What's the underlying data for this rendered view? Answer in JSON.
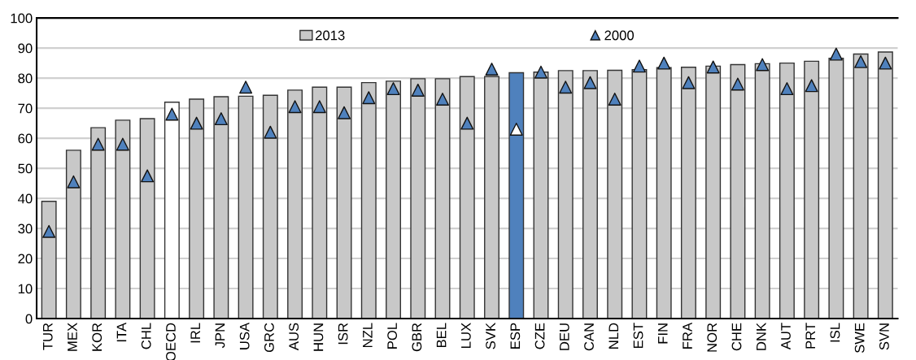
{
  "chart_data": {
    "type": "bar",
    "categories": [
      "TUR",
      "MEX",
      "KOR",
      "ITA",
      "CHL",
      "OECD",
      "IRL",
      "JPN",
      "USA",
      "GRC",
      "AUS",
      "HUN",
      "ISR",
      "NZL",
      "POL",
      "GBR",
      "BEL",
      "LUX",
      "SVK",
      "ESP",
      "CZE",
      "DEU",
      "CAN",
      "NLD",
      "EST",
      "FIN",
      "FRA",
      "NOR",
      "CHE",
      "DNK",
      "AUT",
      "PRT",
      "ISL",
      "SWE",
      "SVN"
    ],
    "series": [
      {
        "name": "2013",
        "color": "#c8c8c8",
        "colors": [
          "#c8c8c8",
          "#c8c8c8",
          "#c8c8c8",
          "#c8c8c8",
          "#c8c8c8",
          "#ffffff",
          "#c8c8c8",
          "#c8c8c8",
          "#c8c8c8",
          "#c8c8c8",
          "#c8c8c8",
          "#c8c8c8",
          "#c8c8c8",
          "#c8c8c8",
          "#c8c8c8",
          "#c8c8c8",
          "#c8c8c8",
          "#c8c8c8",
          "#c8c8c8",
          "#4f81bd",
          "#c8c8c8",
          "#c8c8c8",
          "#c8c8c8",
          "#c8c8c8",
          "#c8c8c8",
          "#c8c8c8",
          "#c8c8c8",
          "#c8c8c8",
          "#c8c8c8",
          "#c8c8c8",
          "#c8c8c8",
          "#c8c8c8",
          "#c8c8c8",
          "#c8c8c8",
          "#c8c8c8"
        ],
        "values": [
          39,
          56,
          63.5,
          66,
          66.5,
          72,
          73,
          73.8,
          74,
          74.3,
          76,
          77,
          77,
          78.5,
          79,
          79.8,
          79.8,
          80.5,
          80.5,
          81.8,
          82,
          82.5,
          82.5,
          82.6,
          82.8,
          83.5,
          83.6,
          84,
          84.5,
          84.8,
          85,
          85.6,
          86.6,
          88,
          88.7
        ]
      },
      {
        "name": "2000",
        "type": "scatter",
        "marker": "triangle",
        "color": "#4f81bd",
        "colors": [
          "#4f81bd",
          "#4f81bd",
          "#4f81bd",
          "#4f81bd",
          "#4f81bd",
          "#4f81bd",
          "#4f81bd",
          "#4f81bd",
          "#4f81bd",
          "#4f81bd",
          "#4f81bd",
          "#4f81bd",
          "#4f81bd",
          "#4f81bd",
          "#4f81bd",
          "#4f81bd",
          "#4f81bd",
          "#4f81bd",
          "#4f81bd",
          "#ffffff",
          "#4f81bd",
          "#4f81bd",
          "#4f81bd",
          "#4f81bd",
          "#4f81bd",
          "#4f81bd",
          "#4f81bd",
          "#4f81bd",
          "#4f81bd",
          "#4f81bd",
          "#4f81bd",
          "#4f81bd",
          "#4f81bd",
          "#4f81bd",
          "#4f81bd"
        ],
        "values": [
          29,
          45.5,
          58,
          58,
          47.5,
          68,
          65,
          66.5,
          77,
          62,
          70.5,
          70.5,
          68.5,
          73.5,
          76.5,
          76,
          73,
          65,
          83,
          63,
          82,
          77,
          78.5,
          73,
          84,
          85,
          78.5,
          83.7,
          78,
          84.5,
          76.5,
          77.5,
          88,
          85.5,
          85
        ]
      }
    ],
    "ylim": [
      0,
      100
    ],
    "yticks": [
      0,
      10,
      20,
      30,
      40,
      50,
      60,
      70,
      80,
      90,
      100
    ],
    "grid": "y",
    "legend": "top"
  }
}
